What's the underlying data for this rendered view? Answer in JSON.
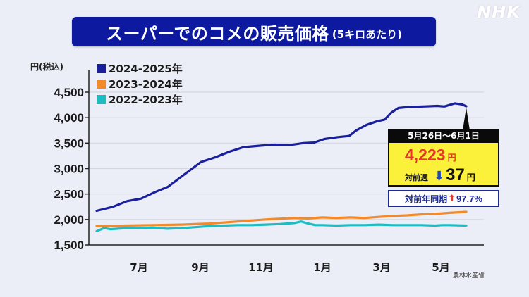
{
  "header": {
    "title": "スーパーでのコメの販売価格",
    "subtitle": "(5キロあたり)",
    "logo": "NHK"
  },
  "source": "農林水産省",
  "callout": {
    "period": "5月26日〜6月1日",
    "price": "4,223",
    "price_unit": "円",
    "week_change_label": "対前週",
    "week_change_direction": "down",
    "week_change_value": "37",
    "week_change_unit": "円",
    "yoy_label": "対前年同期",
    "yoy_direction": "up",
    "yoy_value": "97.7%",
    "colors": {
      "header_bg": "#0a0a0a",
      "body_bg": "#fbf13a",
      "price": "#e8352a",
      "down_arrow": "#1f47b8",
      "up_arrow": "#e8352a",
      "yoy_border": "#1d2a8f"
    }
  },
  "chart_data": {
    "type": "line",
    "title": "スーパーでのコメの販売価格 (5キロあたり)",
    "xlabel": "",
    "ylabel": "円(税込)",
    "ylim": [
      1500,
      4500
    ],
    "yticks": [
      1500,
      2000,
      2500,
      3000,
      3500,
      4000,
      4500
    ],
    "ytick_labels": [
      "1,500",
      "2,000",
      "2,500",
      "3,000",
      "3,500",
      "4,000",
      "4,500"
    ],
    "xlim_weeks": [
      0,
      52
    ],
    "xticks": [
      {
        "week": 6,
        "label": "7月"
      },
      {
        "week": 14.7,
        "label": "9月"
      },
      {
        "week": 23.3,
        "label": "11月"
      },
      {
        "week": 32,
        "label": "1月"
      },
      {
        "week": 40.4,
        "label": "3月"
      },
      {
        "week": 48.8,
        "label": "5月"
      }
    ],
    "grid": true,
    "legend_position": "top-left",
    "series": [
      {
        "name": "2024-2025年",
        "color": "#1a1f9c",
        "x": [
          0,
          2.3,
          4.3,
          6.3,
          8.3,
          10.1,
          12.3,
          14.8,
          16.8,
          18.8,
          20.8,
          23.3,
          25.3,
          27.3,
          29.3,
          30.8,
          32.3,
          34.3,
          35.8,
          36.8,
          38.3,
          39.8,
          40.8,
          41.8,
          42.8,
          44.3,
          46.3,
          48.3,
          49.3,
          50.8,
          51.8,
          52.4
        ],
        "values": [
          2170,
          2250,
          2360,
          2410,
          2540,
          2640,
          2870,
          3130,
          3220,
          3330,
          3420,
          3450,
          3470,
          3460,
          3500,
          3510,
          3580,
          3620,
          3640,
          3750,
          3860,
          3930,
          3960,
          4100,
          4190,
          4210,
          4220,
          4230,
          4220,
          4280,
          4260,
          4223
        ]
      },
      {
        "name": "2023-2024年",
        "color": "#f28a2a",
        "x": [
          0,
          4,
          8,
          12,
          16,
          20,
          24,
          28,
          30,
          32,
          34,
          36,
          38,
          40,
          42,
          44,
          46,
          48,
          50,
          52.4
        ],
        "values": [
          1870,
          1880,
          1890,
          1900,
          1920,
          1960,
          2000,
          2030,
          2020,
          2040,
          2030,
          2040,
          2030,
          2050,
          2070,
          2080,
          2100,
          2110,
          2130,
          2150
        ]
      },
      {
        "name": "2022-2023年",
        "color": "#1cbcc0",
        "x": [
          0,
          1,
          2,
          4,
          6,
          8,
          10,
          12,
          14,
          16,
          18,
          20,
          22,
          24,
          26,
          28,
          29,
          30,
          31,
          32,
          34,
          36,
          38,
          40,
          42,
          44,
          46,
          48,
          49,
          50,
          52.4
        ],
        "values": [
          1770,
          1830,
          1810,
          1830,
          1830,
          1840,
          1820,
          1830,
          1850,
          1870,
          1880,
          1890,
          1890,
          1900,
          1910,
          1930,
          1960,
          1920,
          1890,
          1890,
          1880,
          1890,
          1890,
          1900,
          1890,
          1890,
          1890,
          1880,
          1890,
          1890,
          1880
        ]
      }
    ],
    "annotation": {
      "period": "5月26日〜6月1日",
      "value": 4223,
      "week_change": -37,
      "yoy_change_percent": 97.7
    }
  }
}
